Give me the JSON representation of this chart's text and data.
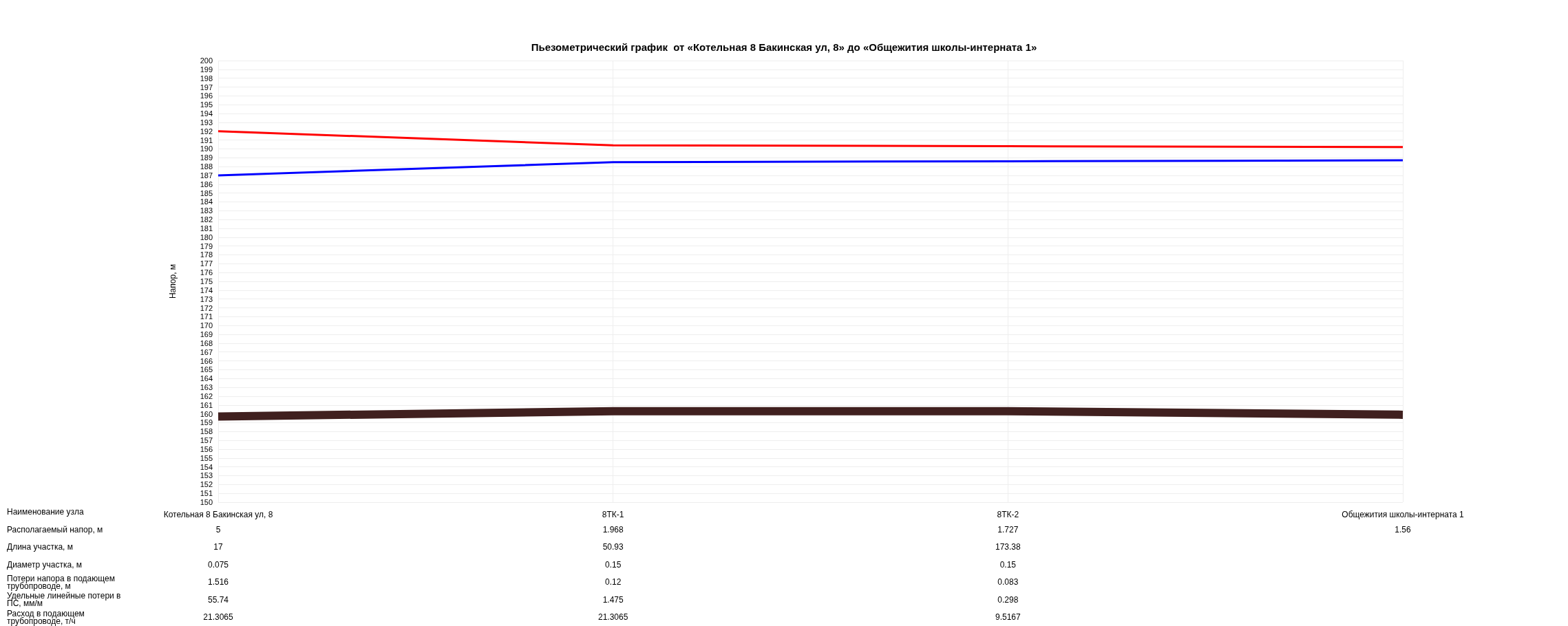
{
  "chart_data": {
    "type": "line",
    "title": "Пьезометрический график  от «Котельная 8 Бакинская ул, 8» до «Общежития школы-интерната 1»",
    "ylabel": "Напор, м",
    "categories": [
      "Котельная 8 Бакинская ул, 8",
      "8ТК-1",
      "8ТК-2",
      "Общежития школы-интерната 1"
    ],
    "series": [
      {
        "color": "#ff0000",
        "values": [
          192,
          190.4,
          190.3,
          190.2
        ]
      },
      {
        "color": "#0000ff",
        "values": [
          187,
          188.5,
          188.6,
          188.7
        ]
      },
      {
        "color": "#40201f",
        "values": [
          159.7,
          160.3,
          160.3,
          159.9
        ]
      }
    ],
    "ylim": [
      150,
      200
    ],
    "yticks": [
      150,
      151,
      152,
      153,
      154,
      155,
      156,
      157,
      158,
      159,
      160,
      161,
      162,
      163,
      164,
      165,
      166,
      167,
      168,
      169,
      170,
      171,
      172,
      173,
      174,
      175,
      176,
      177,
      178,
      179,
      180,
      181,
      182,
      183,
      184,
      185,
      186,
      187,
      188,
      189,
      190,
      191,
      192,
      193,
      194,
      195,
      196,
      197,
      198,
      199,
      200
    ],
    "grid": true,
    "marker": "none",
    "line_style": "solid",
    "annotations": [
      "Наименование узла",
      "Располагаемый напор, м",
      "5",
      "1.968",
      "1.727",
      "1.56",
      "Длина участка, м",
      "17",
      "50.93",
      "173.38",
      "Диаметр участка, м",
      "0.075",
      "0.15",
      "0.15",
      "Потери напора в подающем трубопроводе, м",
      "1.516",
      "0.12",
      "0.083",
      "Удельные линейные потери в ПС, мм/м",
      "55.74",
      "1.475",
      "0.298",
      "Расход в подающем трубопроводе, т/ч",
      "21.3065",
      "21.3065",
      "9.5167"
    ]
  }
}
